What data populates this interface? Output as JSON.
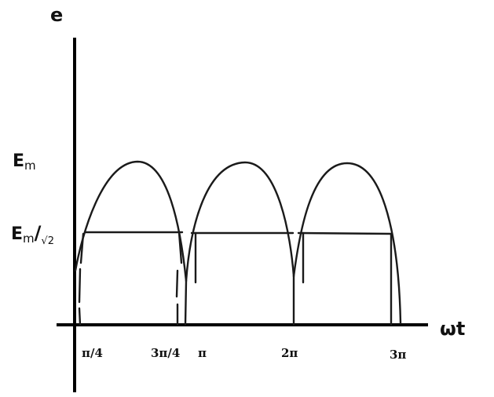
{
  "diagram": {
    "axis_y_label": "e",
    "axis_x_label": "ωt",
    "peak_label": "Em",
    "peak_label_base": "E",
    "peak_label_sub": "m",
    "rms_label": "Em/√2",
    "rms_label_base": "E",
    "rms_label_sub": "m",
    "rms_label_slash": "/",
    "rms_label_denom": "√2",
    "x_ticks": [
      "π/4",
      "3π/4",
      "π",
      "2π",
      "3π"
    ],
    "waveform": "full-wave rectified sine",
    "line_color": "#1a1a1a"
  }
}
